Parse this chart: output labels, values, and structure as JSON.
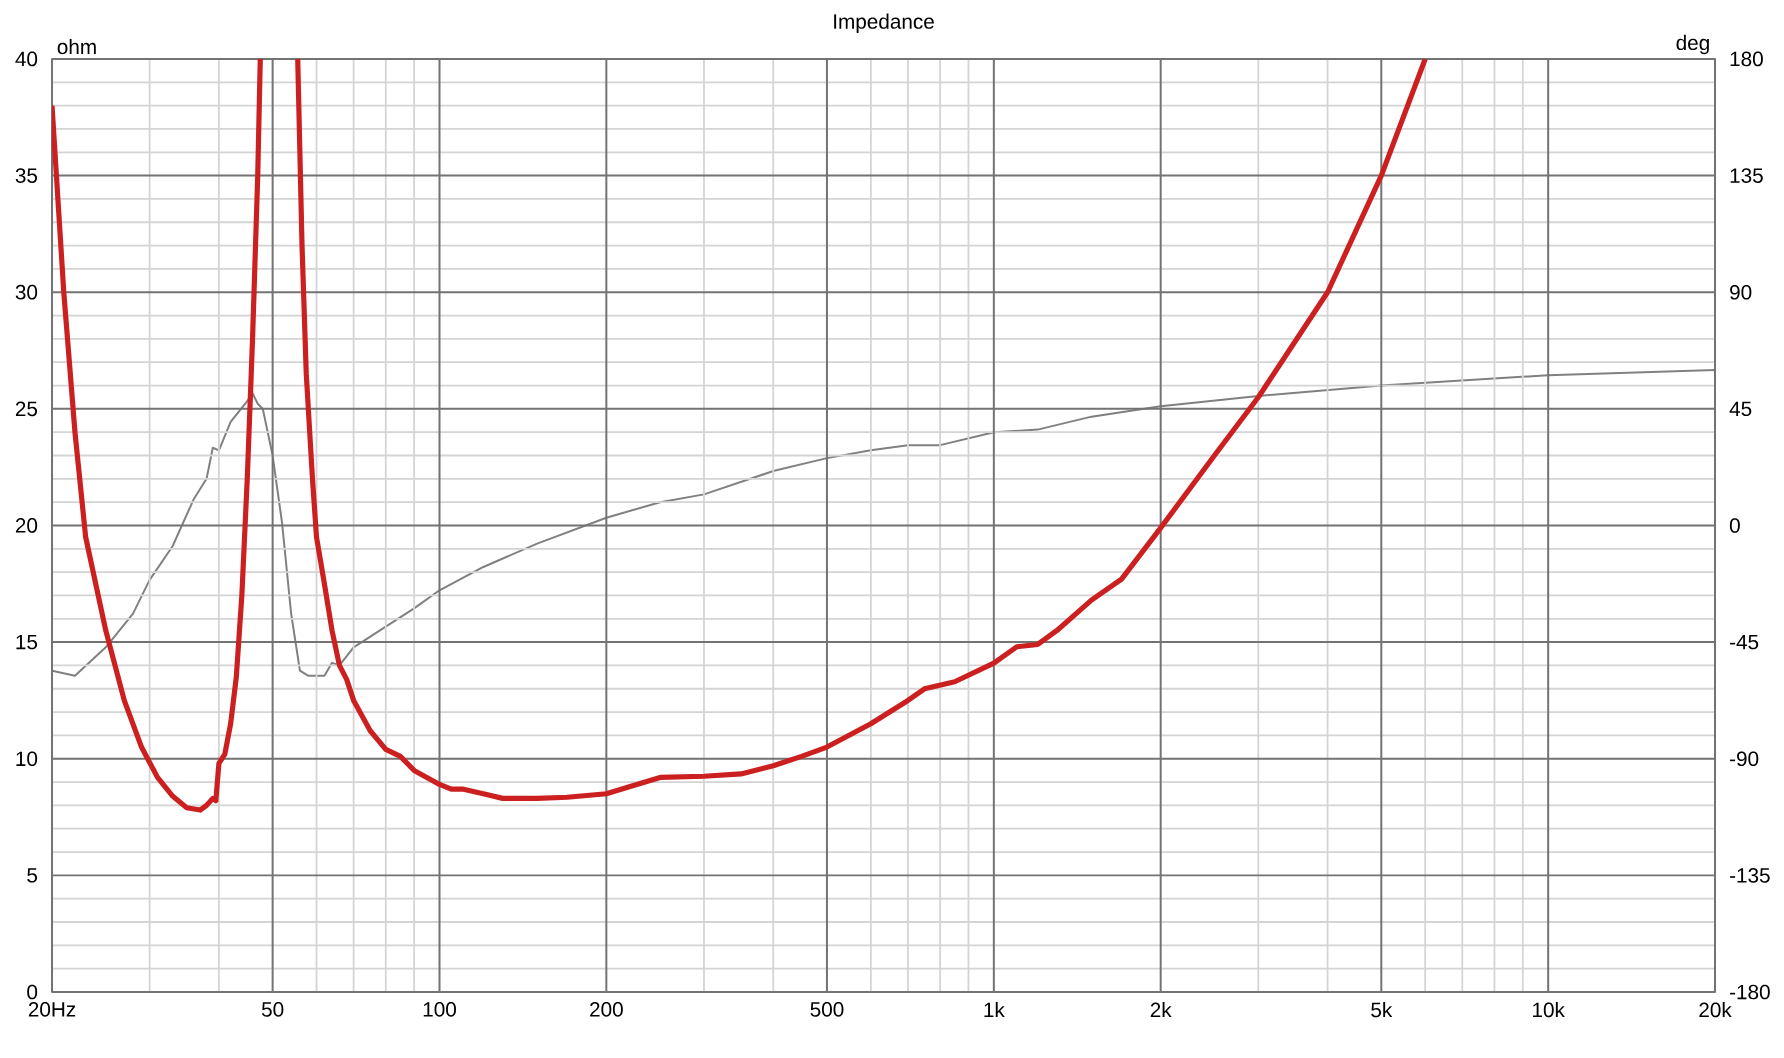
{
  "chart_data": {
    "type": "line",
    "title": "Impedance",
    "ylabel": "ohm",
    "y2label": "deg",
    "log": "x",
    "grid": true,
    "xlim": [
      20,
      20000
    ],
    "xticks": [
      {
        "value": 20,
        "label": "20Hz"
      },
      {
        "value": 30,
        "label": null
      },
      {
        "value": 40,
        "label": null
      },
      50,
      {
        "value": 60,
        "label": null
      },
      {
        "value": 70,
        "label": null
      },
      {
        "value": 80,
        "label": null
      },
      {
        "value": 90,
        "label": null
      },
      100,
      200,
      {
        "value": 300,
        "label": null
      },
      {
        "value": 400,
        "label": null
      },
      500,
      {
        "value": 600,
        "label": null
      },
      {
        "value": 700,
        "label": null
      },
      {
        "value": 800,
        "label": null
      },
      {
        "value": 900,
        "label": null
      },
      {
        "value": 1000,
        "label": "1k"
      },
      {
        "value": 2000,
        "label": "2k"
      },
      {
        "value": 3000,
        "label": null
      },
      {
        "value": 4000,
        "label": null
      },
      {
        "value": 5000,
        "label": "5k"
      },
      {
        "value": 6000,
        "label": null
      },
      {
        "value": 7000,
        "label": null
      },
      {
        "value": 8000,
        "label": null
      },
      {
        "value": 9000,
        "label": null
      },
      {
        "value": 10000,
        "label": "10k"
      },
      {
        "value": 20000,
        "label": "20k"
      }
    ],
    "ylim": [
      0,
      40
    ],
    "yticks": [
      0,
      {
        "value": 1,
        "label": null
      },
      {
        "value": 2,
        "label": null
      },
      {
        "value": 3,
        "label": null
      },
      {
        "value": 4,
        "label": null
      },
      5,
      {
        "value": 6,
        "label": null
      },
      {
        "value": 7,
        "label": null
      },
      {
        "value": 8,
        "label": null
      },
      {
        "value": 9,
        "label": null
      },
      10,
      {
        "value": 11,
        "label": null
      },
      {
        "value": 12,
        "label": null
      },
      {
        "value": 13,
        "label": null
      },
      {
        "value": 14,
        "label": null
      },
      15,
      {
        "value": 16,
        "label": null
      },
      {
        "value": 17,
        "label": null
      },
      {
        "value": 18,
        "label": null
      },
      {
        "value": 19,
        "label": null
      },
      20,
      {
        "value": 21,
        "label": null
      },
      {
        "value": 22,
        "label": null
      },
      {
        "value": 23,
        "label": null
      },
      {
        "value": 24,
        "label": null
      },
      25,
      {
        "value": 26,
        "label": null
      },
      {
        "value": 27,
        "label": null
      },
      {
        "value": 28,
        "label": null
      },
      {
        "value": 29,
        "label": null
      },
      30,
      {
        "value": 31,
        "label": null
      },
      {
        "value": 32,
        "label": null
      },
      {
        "value": 33,
        "label": null
      },
      {
        "value": 34,
        "label": null
      },
      35,
      {
        "value": 36,
        "label": null
      },
      {
        "value": 37,
        "label": null
      },
      {
        "value": 38,
        "label": null
      },
      {
        "value": 39,
        "label": null
      },
      40
    ],
    "y2lim": [
      -180,
      180
    ],
    "y2ticks": [
      -180,
      -135,
      -90,
      -45,
      0,
      45,
      90,
      135,
      180
    ],
    "series": [
      {
        "color": "#cc1f1f",
        "axis": "y",
        "x": [
          20,
          21,
          22,
          23,
          25,
          27,
          29,
          31,
          33,
          35,
          37,
          38,
          39,
          39.5,
          40,
          41,
          42,
          43,
          44,
          45,
          46,
          47,
          47.5,
          51,
          55.5,
          56.5,
          57.5,
          59,
          60,
          62,
          64,
          66,
          68,
          70,
          75,
          80,
          85,
          90,
          100,
          105,
          110,
          120,
          130,
          150,
          170,
          200,
          220,
          250,
          300,
          350,
          400,
          450,
          500,
          600,
          700,
          750,
          850,
          1000,
          1100,
          1200,
          1300,
          1500,
          1700,
          2000,
          2500,
          3000,
          4000,
          5000,
          6000
        ],
        "values": [
          38,
          30,
          24,
          19.5,
          15.5,
          12.5,
          10.5,
          9.2,
          8.4,
          7.9,
          7.8,
          8.0,
          8.3,
          8.2,
          9.8,
          10.2,
          11.5,
          13.5,
          17,
          22,
          28,
          35,
          40,
          null,
          40,
          32,
          26.5,
          22,
          19.5,
          17.5,
          15.5,
          14,
          13.4,
          12.5,
          11.2,
          10.4,
          10.1,
          9.5,
          8.9,
          8.7,
          8.7,
          8.5,
          8.3,
          8.3,
          8.35,
          8.5,
          8.8,
          9.2,
          9.25,
          9.35,
          9.7,
          10.1,
          10.5,
          11.5,
          12.5,
          13,
          13.3,
          14.1,
          14.8,
          14.9,
          15.5,
          16.8,
          17.7,
          19.9,
          23,
          25.5,
          30,
          35,
          40
        ]
      },
      {
        "color": "#808080",
        "axis": "y2",
        "x": [
          20,
          22,
          25,
          28,
          30,
          33,
          36,
          38,
          39,
          40,
          42,
          45,
          46,
          47,
          48,
          50,
          52,
          54,
          56,
          58,
          62,
          64,
          66,
          70,
          80,
          90,
          100,
          120,
          150,
          200,
          250,
          300,
          400,
          500,
          600,
          700,
          800,
          1000,
          1200,
          1500,
          2000,
          3000,
          5000,
          10000,
          20000
        ],
        "values": [
          -56,
          -58,
          -47,
          -34,
          -21,
          -8,
          10,
          18,
          30,
          29,
          40,
          48,
          51,
          47,
          45,
          27,
          1,
          -34,
          -56,
          -58,
          -58,
          -53,
          -54,
          -47,
          -39,
          -32,
          -25,
          -16,
          -7,
          3,
          9,
          12,
          21,
          26,
          29,
          31,
          31,
          36,
          37,
          42,
          46,
          50,
          54,
          58,
          60
        ]
      }
    ]
  }
}
